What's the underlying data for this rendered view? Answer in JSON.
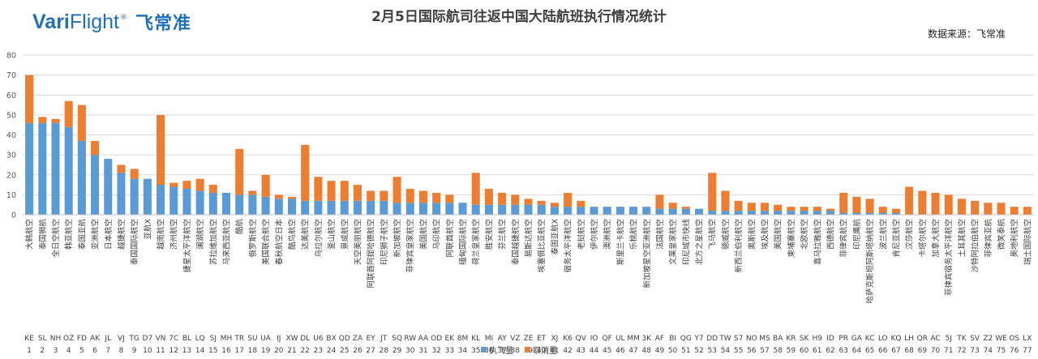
{
  "logo": {
    "vari": "Vari",
    "flight": "Flight",
    "reg": "®",
    "cn": "飞常准"
  },
  "source": "数据来源：飞常准",
  "colors": {
    "executed": "#5b9bd5",
    "cancelled": "#ed7d31",
    "grid": "#d9d9d9",
    "logo": "#1f6fb8"
  },
  "chart_data": {
    "type": "bar",
    "stacked": true,
    "title": "2月5日国际航司往返中国大陆航班执行情况统计",
    "ylim": [
      0,
      80
    ],
    "yticks": [
      0,
      10,
      20,
      30,
      40,
      50,
      60,
      70,
      80
    ],
    "grid": true,
    "legend_position": "bottom",
    "categories": [
      "大韩航空",
      "泰国狮航",
      "全日空航空",
      "韩亚航空",
      "泰国亚航",
      "亚洲航空",
      "日本航空",
      "越捷航空",
      "泰国国际航空",
      "亚航X",
      "越南航空",
      "济州航空",
      "捷星太平洋航空",
      "澜湖航空",
      "苏拉维加航空",
      "马来西亚航空",
      "酷航",
      "俄罗斯航空",
      "美国联合航空",
      "春秋航空日本",
      "酷鸟航空",
      "达美航空",
      "乌拉尔航空",
      "釜山航空",
      "景成航空",
      "天空美丽航空",
      "阿联酋阿提哈德航空",
      "印尼狮子航空",
      "新加坡航空",
      "菲律宾皇家航空",
      "美国航空",
      "马印航空",
      "阿联酋航空",
      "缅甸国际航空",
      "荷兰皇家航空",
      "胜安航空",
      "芬兰航空",
      "泰国越捷航空",
      "易斯达航空",
      "埃塞俄比亚航空",
      "泰国亚航X",
      "宿务太平洋航空",
      "老挝航空",
      "伊尔航空",
      "澳洲航空",
      "斯里兰卡航空",
      "乐桃航空",
      "新加坡星空亚洲航空",
      "法国航空",
      "文莱皇家航空",
      "印尼城市快线",
      "北方之星航空",
      "飞马航空",
      "德威航空",
      "新西兰伯利航空",
      "奥斯航空",
      "埃及航空",
      "美国航空",
      "柬埔寨航空",
      "北欧航空",
      "喜马拉雅航空",
      "西德航空",
      "菲律宾航空",
      "印尼鹰航",
      "哈萨克斯坦阿斯塔纳航空",
      "波兰航空",
      "肯尼亚航空",
      "汉莎航空",
      "卡塔尔航空",
      "加拿大航空",
      "菲律宾宿务太平洋航空",
      "土耳其航空",
      "沙特阿拉伯航空",
      "菲律宾亚航",
      "微笑泰航",
      "奥地利航空",
      "瑞士国际航空"
    ],
    "codes": [
      "KE",
      "SL",
      "NH",
      "OZ",
      "FD",
      "AK",
      "JL",
      "VJ",
      "TG",
      "D7",
      "VN",
      "7C",
      "BL",
      "LQ",
      "SJ",
      "MH",
      "TR",
      "SU",
      "UA",
      "IJ",
      "XW",
      "DL",
      "U6",
      "BX",
      "QD",
      "ZA",
      "EY",
      "JT",
      "SQ",
      "RW",
      "AA",
      "OD",
      "EK",
      "8M",
      "KL",
      "MI",
      "AY",
      "VZ",
      "ZE",
      "ET",
      "XJ",
      "K6",
      "QV",
      "IO",
      "QF",
      "UL",
      "MM",
      "3K",
      "AF",
      "BI",
      "QG",
      "Y7",
      "DD",
      "TW",
      "S7",
      "NO",
      "MS",
      "BA",
      "KR",
      "SK",
      "H9",
      "ID",
      "PR",
      "GA",
      "KC",
      "LO",
      "KQ",
      "LH",
      "QR",
      "AC",
      "5J",
      "TK",
      "SV",
      "Z2",
      "WE",
      "OS",
      "LX"
    ],
    "index": [
      1,
      2,
      3,
      4,
      5,
      6,
      7,
      8,
      9,
      10,
      11,
      12,
      13,
      14,
      15,
      16,
      17,
      18,
      19,
      20,
      21,
      22,
      23,
      24,
      25,
      26,
      27,
      28,
      29,
      30,
      31,
      32,
      33,
      34,
      35,
      36,
      37,
      38,
      39,
      40,
      41,
      42,
      43,
      44,
      45,
      46,
      47,
      48,
      49,
      50,
      51,
      52,
      53,
      54,
      55,
      56,
      57,
      58,
      59,
      60,
      61,
      62,
      63,
      64,
      65,
      66,
      67,
      68,
      69,
      70,
      71,
      72,
      73,
      74,
      75,
      76,
      77
    ],
    "series": [
      {
        "name": "执飞量",
        "values": [
          46,
          46,
          46,
          44,
          37,
          30,
          28,
          21,
          18,
          18,
          15,
          14,
          13,
          12,
          11,
          11,
          10,
          10,
          9,
          8,
          8,
          7,
          7,
          7,
          7,
          7,
          7,
          7,
          6,
          6,
          6,
          6,
          6,
          6,
          5,
          5,
          5,
          5,
          5,
          5,
          4,
          4,
          4,
          4,
          4,
          4,
          4,
          4,
          3,
          3,
          3,
          3,
          2,
          2,
          2,
          2,
          2,
          2,
          2,
          2,
          2,
          2,
          1,
          1,
          1,
          1,
          1,
          0,
          0,
          0,
          0,
          0,
          0,
          0,
          0,
          0,
          0
        ]
      },
      {
        "name": "取消量",
        "values": [
          24,
          3,
          2,
          13,
          18,
          7,
          0,
          4,
          5,
          0,
          35,
          2,
          4,
          6,
          4,
          0,
          23,
          2,
          11,
          2,
          1,
          28,
          12,
          10,
          10,
          8,
          5,
          5,
          13,
          7,
          6,
          5,
          4,
          0,
          16,
          8,
          6,
          5,
          3,
          2,
          2,
          7,
          3,
          0,
          0,
          0,
          0,
          0,
          7,
          3,
          1,
          0,
          19,
          10,
          5,
          4,
          4,
          3,
          2,
          2,
          2,
          1,
          10,
          8,
          7,
          3,
          2,
          14,
          12,
          11,
          10,
          8,
          7,
          6,
          6,
          4,
          4
        ]
      }
    ]
  }
}
